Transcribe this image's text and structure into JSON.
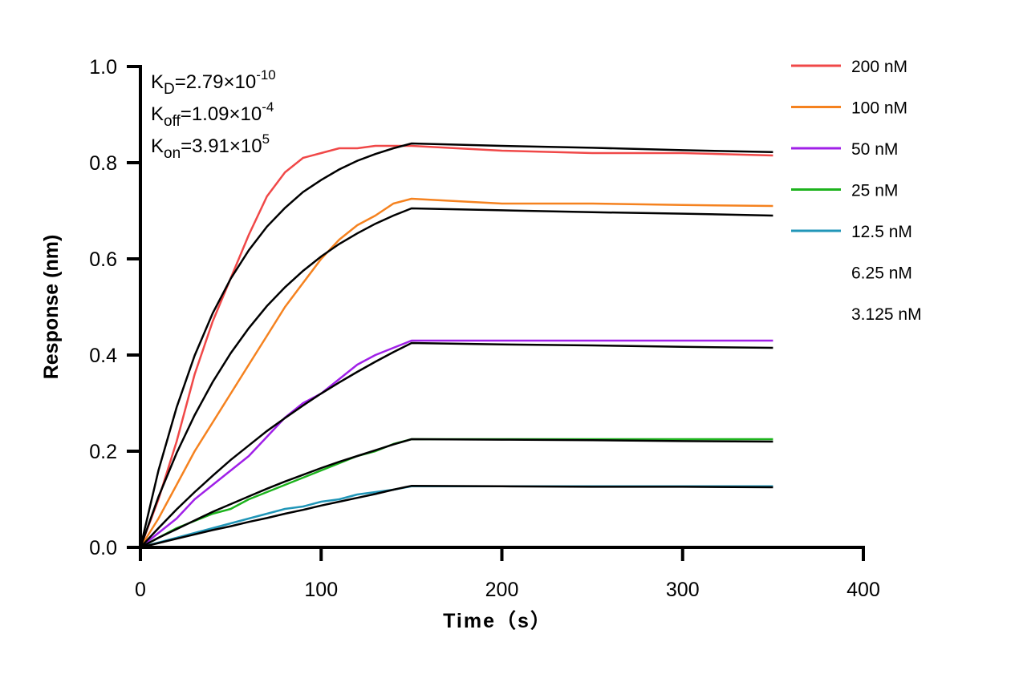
{
  "chart_data": {
    "type": "line",
    "title": "",
    "xlabel": "Time（s）",
    "ylabel": "Response (nm)",
    "xlim": [
      0,
      400
    ],
    "ylim": [
      0,
      1.0
    ],
    "xticks": [
      "0",
      "100",
      "200",
      "300",
      "400"
    ],
    "yticks": [
      "0.0",
      "0.2",
      "0.4",
      "0.6",
      "0.8",
      "1.0"
    ],
    "grid": false,
    "legend_position": "right",
    "annotations": [
      {
        "base": "K",
        "sub": "D",
        "value": "=2.79×10",
        "exp": "-10"
      },
      {
        "base": "K",
        "sub": "off",
        "value": "=1.09×10",
        "exp": "-4"
      },
      {
        "base": "K",
        "sub": "on",
        "value": "=3.91×10",
        "exp": "5"
      }
    ],
    "x": [
      0,
      10,
      20,
      30,
      40,
      50,
      60,
      70,
      80,
      90,
      100,
      110,
      120,
      130,
      140,
      150,
      200,
      250,
      300,
      350
    ],
    "series": [
      {
        "name": "200 nM",
        "color": "#f04848",
        "values": [
          0,
          0.1,
          0.22,
          0.36,
          0.47,
          0.56,
          0.65,
          0.73,
          0.78,
          0.81,
          0.82,
          0.83,
          0.83,
          0.835,
          0.835,
          0.835,
          0.825,
          0.82,
          0.82,
          0.815
        ],
        "fit": [
          0,
          0.16,
          0.291,
          0.399,
          0.487,
          0.559,
          0.618,
          0.667,
          0.706,
          0.739,
          0.764,
          0.786,
          0.804,
          0.818,
          0.83,
          0.84,
          0.835,
          0.831,
          0.826,
          0.822
        ]
      },
      {
        "name": "100 nM",
        "color": "#f5821f",
        "values": [
          0,
          0.06,
          0.13,
          0.2,
          0.26,
          0.32,
          0.38,
          0.44,
          0.5,
          0.55,
          0.6,
          0.64,
          0.67,
          0.69,
          0.715,
          0.725,
          0.715,
          0.715,
          0.712,
          0.71
        ],
        "fit": [
          0,
          0.105,
          0.196,
          0.275,
          0.344,
          0.404,
          0.456,
          0.502,
          0.541,
          0.575,
          0.605,
          0.631,
          0.653,
          0.673,
          0.69,
          0.705,
          0.701,
          0.697,
          0.694,
          0.69
        ]
      },
      {
        "name": "50 nM",
        "color": "#a020e8",
        "values": [
          0,
          0.03,
          0.06,
          0.1,
          0.13,
          0.16,
          0.19,
          0.23,
          0.27,
          0.3,
          0.32,
          0.35,
          0.38,
          0.4,
          0.415,
          0.43,
          0.43,
          0.43,
          0.43,
          0.43
        ],
        "fit": [
          0,
          0.04,
          0.079,
          0.115,
          0.149,
          0.182,
          0.212,
          0.242,
          0.269,
          0.295,
          0.32,
          0.343,
          0.365,
          0.386,
          0.406,
          0.425,
          0.422,
          0.42,
          0.417,
          0.415
        ]
      },
      {
        "name": "25 nM",
        "color": "#1db31d",
        "values": [
          0,
          0.02,
          0.04,
          0.055,
          0.07,
          0.08,
          0.1,
          0.115,
          0.13,
          0.145,
          0.16,
          0.175,
          0.19,
          0.2,
          0.215,
          0.225,
          0.225,
          0.225,
          0.225,
          0.225
        ],
        "fit": [
          0,
          0.02,
          0.038,
          0.056,
          0.074,
          0.09,
          0.106,
          0.122,
          0.137,
          0.151,
          0.165,
          0.178,
          0.19,
          0.202,
          0.214,
          0.225,
          0.224,
          0.223,
          0.221,
          0.22
        ]
      },
      {
        "name": "12.5 nM",
        "color": "#2196b8",
        "values": [
          0,
          0.01,
          0.02,
          0.03,
          0.04,
          0.05,
          0.06,
          0.07,
          0.08,
          0.085,
          0.095,
          0.1,
          0.11,
          0.115,
          0.12,
          0.127,
          0.127,
          0.127,
          0.127,
          0.127
        ],
        "fit": [
          0,
          0.009,
          0.018,
          0.027,
          0.036,
          0.044,
          0.053,
          0.061,
          0.07,
          0.078,
          0.087,
          0.095,
          0.103,
          0.111,
          0.12,
          0.128,
          0.127,
          0.126,
          0.126,
          0.125
        ]
      }
    ],
    "legend_entries_without_line": [
      "6.25 nM",
      "3.125 nM"
    ],
    "fit_color": "#000000"
  }
}
